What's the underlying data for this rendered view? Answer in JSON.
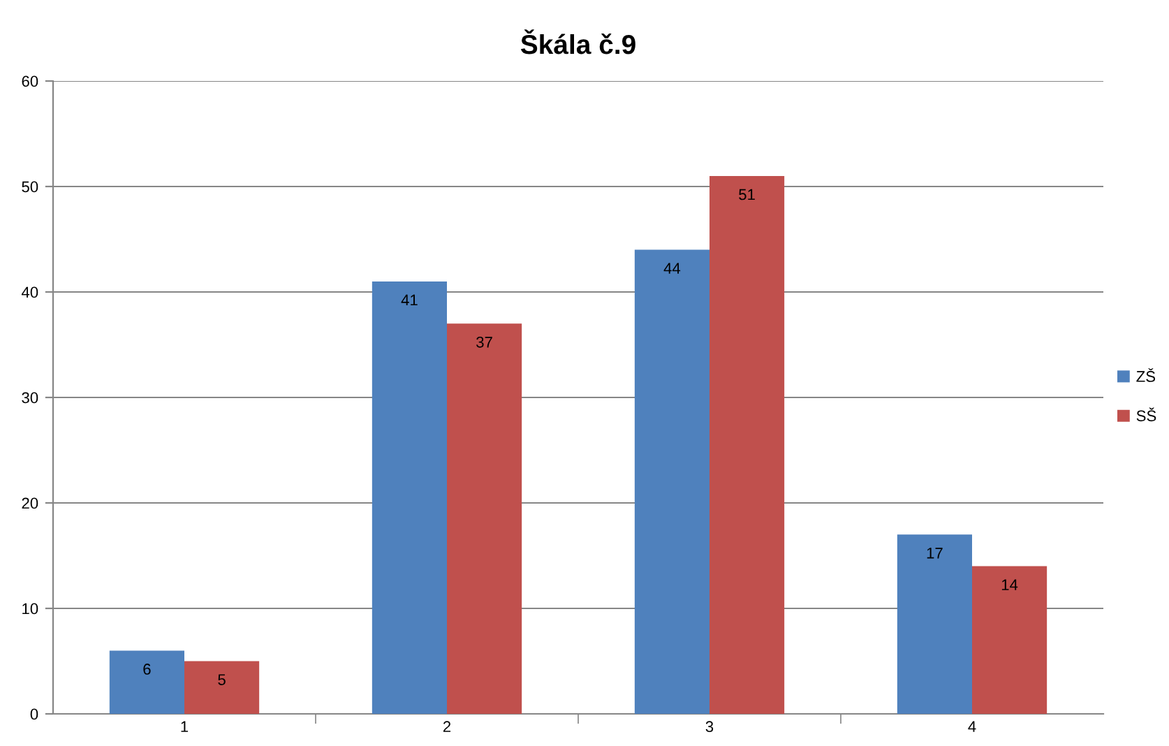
{
  "chart_data": {
    "type": "bar",
    "title": "Škála č.9",
    "categories": [
      "1",
      "2",
      "3",
      "4"
    ],
    "series": [
      {
        "name": "ZŠ",
        "color": "#4f81bd",
        "values": [
          6,
          41,
          44,
          17
        ]
      },
      {
        "name": "SŠ",
        "color": "#c0504d",
        "values": [
          5,
          37,
          51,
          14
        ]
      }
    ],
    "ylim": [
      0,
      60
    ],
    "yticks": [
      0,
      10,
      20,
      30,
      40,
      50,
      60
    ],
    "grid": "y",
    "legend": "right",
    "data_labels": true
  }
}
